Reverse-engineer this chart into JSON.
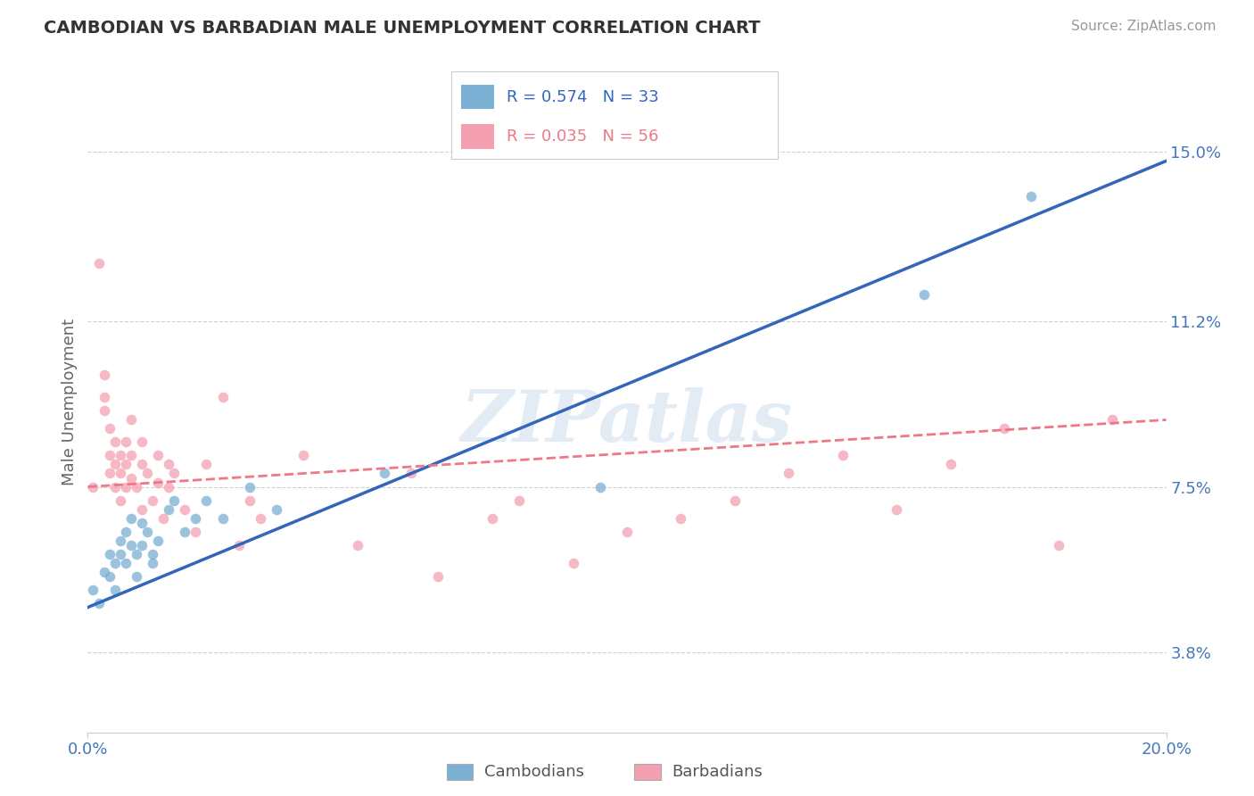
{
  "title": "CAMBODIAN VS BARBADIAN MALE UNEMPLOYMENT CORRELATION CHART",
  "source": "Source: ZipAtlas.com",
  "ylabel": "Male Unemployment",
  "xlim": [
    0.0,
    0.2
  ],
  "ylim": [
    0.02,
    0.168
  ],
  "yticks": [
    0.038,
    0.075,
    0.112,
    0.15
  ],
  "ytick_labels": [
    "3.8%",
    "7.5%",
    "11.2%",
    "15.0%"
  ],
  "xticks": [
    0.0,
    0.2
  ],
  "xtick_labels": [
    "0.0%",
    "20.0%"
  ],
  "color_cambodian": "#7BAFD4",
  "color_barbadian": "#F4A0B0",
  "color_line1": "#3366BB",
  "color_line2": "#EE7788",
  "watermark_text": "ZIPatlas",
  "bottom_legend_labels": [
    "Cambodians",
    "Barbadians"
  ],
  "cambodian_points": [
    [
      0.001,
      0.052
    ],
    [
      0.002,
      0.049
    ],
    [
      0.003,
      0.056
    ],
    [
      0.004,
      0.06
    ],
    [
      0.004,
      0.055
    ],
    [
      0.005,
      0.058
    ],
    [
      0.005,
      0.052
    ],
    [
      0.006,
      0.063
    ],
    [
      0.006,
      0.06
    ],
    [
      0.007,
      0.058
    ],
    [
      0.007,
      0.065
    ],
    [
      0.008,
      0.062
    ],
    [
      0.008,
      0.068
    ],
    [
      0.009,
      0.06
    ],
    [
      0.009,
      0.055
    ],
    [
      0.01,
      0.062
    ],
    [
      0.01,
      0.067
    ],
    [
      0.011,
      0.065
    ],
    [
      0.012,
      0.06
    ],
    [
      0.012,
      0.058
    ],
    [
      0.013,
      0.063
    ],
    [
      0.015,
      0.07
    ],
    [
      0.016,
      0.072
    ],
    [
      0.018,
      0.065
    ],
    [
      0.02,
      0.068
    ],
    [
      0.022,
      0.072
    ],
    [
      0.025,
      0.068
    ],
    [
      0.03,
      0.075
    ],
    [
      0.035,
      0.07
    ],
    [
      0.055,
      0.078
    ],
    [
      0.095,
      0.075
    ],
    [
      0.155,
      0.118
    ],
    [
      0.175,
      0.14
    ]
  ],
  "barbadian_points": [
    [
      0.001,
      0.075
    ],
    [
      0.002,
      0.125
    ],
    [
      0.003,
      0.1
    ],
    [
      0.003,
      0.095
    ],
    [
      0.003,
      0.092
    ],
    [
      0.004,
      0.088
    ],
    [
      0.004,
      0.082
    ],
    [
      0.004,
      0.078
    ],
    [
      0.005,
      0.08
    ],
    [
      0.005,
      0.085
    ],
    [
      0.005,
      0.075
    ],
    [
      0.006,
      0.078
    ],
    [
      0.006,
      0.082
    ],
    [
      0.006,
      0.072
    ],
    [
      0.007,
      0.085
    ],
    [
      0.007,
      0.08
    ],
    [
      0.007,
      0.075
    ],
    [
      0.008,
      0.082
    ],
    [
      0.008,
      0.09
    ],
    [
      0.008,
      0.077
    ],
    [
      0.009,
      0.075
    ],
    [
      0.01,
      0.08
    ],
    [
      0.01,
      0.07
    ],
    [
      0.01,
      0.085
    ],
    [
      0.011,
      0.078
    ],
    [
      0.012,
      0.072
    ],
    [
      0.013,
      0.082
    ],
    [
      0.013,
      0.076
    ],
    [
      0.014,
      0.068
    ],
    [
      0.015,
      0.08
    ],
    [
      0.015,
      0.075
    ],
    [
      0.016,
      0.078
    ],
    [
      0.018,
      0.07
    ],
    [
      0.02,
      0.065
    ],
    [
      0.022,
      0.08
    ],
    [
      0.025,
      0.095
    ],
    [
      0.028,
      0.062
    ],
    [
      0.03,
      0.072
    ],
    [
      0.032,
      0.068
    ],
    [
      0.04,
      0.082
    ],
    [
      0.05,
      0.062
    ],
    [
      0.06,
      0.078
    ],
    [
      0.065,
      0.055
    ],
    [
      0.075,
      0.068
    ],
    [
      0.08,
      0.072
    ],
    [
      0.09,
      0.058
    ],
    [
      0.1,
      0.065
    ],
    [
      0.11,
      0.068
    ],
    [
      0.12,
      0.072
    ],
    [
      0.13,
      0.078
    ],
    [
      0.14,
      0.082
    ],
    [
      0.15,
      0.07
    ],
    [
      0.16,
      0.08
    ],
    [
      0.17,
      0.088
    ],
    [
      0.18,
      0.062
    ],
    [
      0.19,
      0.09
    ]
  ],
  "line1_x0": 0.0,
  "line1_y0": 0.048,
  "line1_x1": 0.2,
  "line1_y1": 0.148,
  "line2_x0": 0.0,
  "line2_y0": 0.075,
  "line2_x1": 0.2,
  "line2_y1": 0.09
}
